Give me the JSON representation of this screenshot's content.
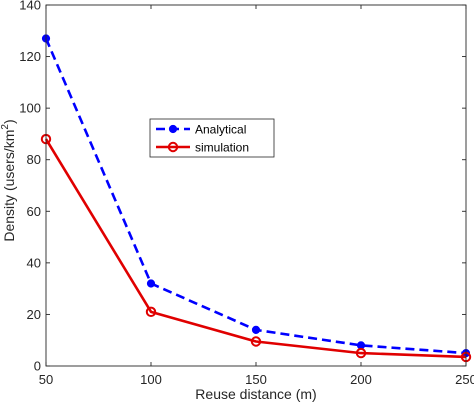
{
  "chart_data": {
    "type": "line",
    "title": "",
    "xlabel": "Reuse distance (m)",
    "ylabel": "Density (users/km",
    "ylabel_superscript": "2",
    "ylabel_close": ")",
    "xlim": [
      50,
      250
    ],
    "ylim": [
      0,
      140
    ],
    "xticks": [
      50,
      100,
      150,
      200,
      250
    ],
    "yticks": [
      0,
      20,
      40,
      60,
      80,
      100,
      120,
      140
    ],
    "grid": false,
    "legend_position": "center",
    "x": [
      50,
      100,
      150,
      200,
      250
    ],
    "series": [
      {
        "name": "Analytical",
        "values": [
          127,
          32,
          14,
          8,
          5
        ],
        "color": "#0000ff",
        "line_style": "dashed",
        "marker": "filled-circle"
      },
      {
        "name": "simulation",
        "values": [
          88,
          21,
          9.5,
          5,
          3.5
        ],
        "color": "#e00000",
        "line_style": "solid",
        "marker": "open-circle"
      }
    ]
  }
}
